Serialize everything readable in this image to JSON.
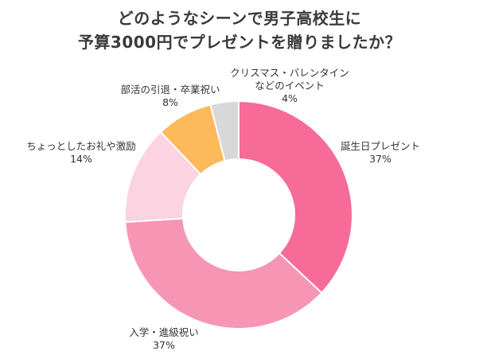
{
  "title": {
    "line1": "どのようなシーンで男子高校生に",
    "line2": "予算3000円でプレゼントを贈りましたか？"
  },
  "chart_data": {
    "type": "pie",
    "style": "donut",
    "slices": [
      {
        "label": "誕生日プレゼント",
        "value": 37,
        "value_label": "37%",
        "color": "#f76b98"
      },
      {
        "label": "入学・進級祝い",
        "value": 37,
        "value_label": "37%",
        "color": "#f795b5"
      },
      {
        "label": "ちょっとしたお礼や激励",
        "value": 14,
        "value_label": "14%",
        "color": "#fcd3e1"
      },
      {
        "label": "部活の引退・卒業祝い",
        "value": 8,
        "value_label": "8%",
        "color": "#feb95a"
      },
      {
        "label": "クリスマス・バレンタインなどのイベント",
        "label_lines": [
          "クリスマス・バレンタイン",
          "などのイベント"
        ],
        "value": 4,
        "value_label": "4%",
        "color": "#d8d8d8"
      }
    ]
  }
}
